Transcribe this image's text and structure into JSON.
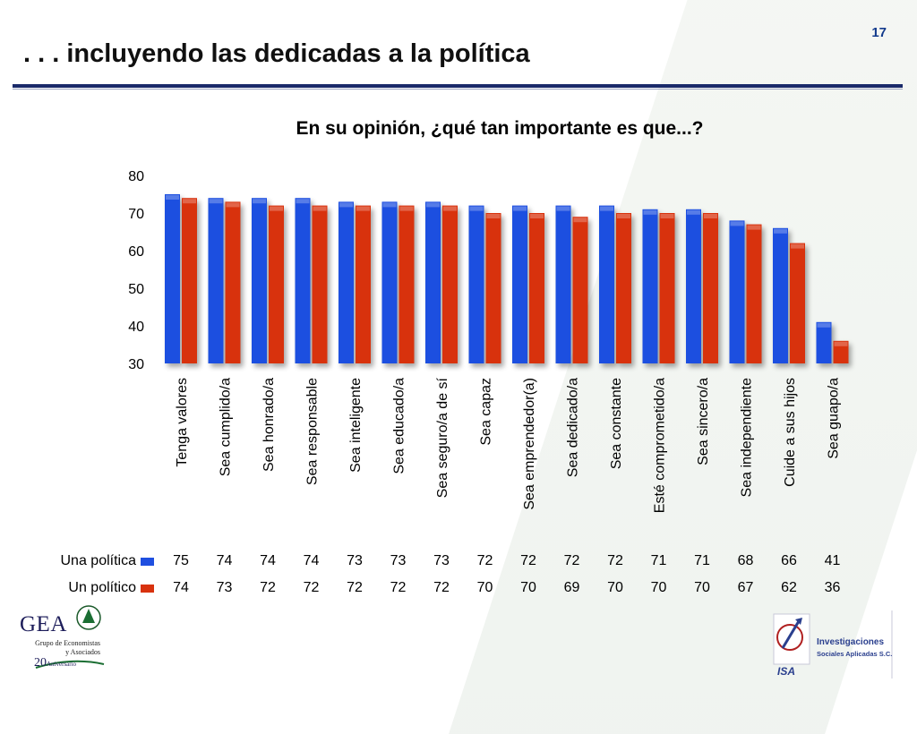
{
  "page": {
    "slide_number": "17",
    "title": ". . . incluyendo las dedicadas a la política"
  },
  "chart_data": {
    "type": "bar",
    "title": "En su opinión, ¿qué tan importante es que...?",
    "categories": [
      "Tenga valores",
      "Sea cumplido/a",
      "Sea honrado/a",
      "Sea responsable",
      "Sea inteligente",
      "Sea educado/a",
      "Sea seguro/a de sí",
      "Sea capaz",
      "Sea emprendedor(a)",
      "Sea dedicado/a",
      "Sea constante",
      "Esté comprometido/a",
      "Sea sincero/a",
      "Sea independiente",
      "Cuide a sus hijos",
      "Sea guapo/a"
    ],
    "series": [
      {
        "name": "Una política",
        "color": "#1f4fe0",
        "values": [
          75,
          74,
          74,
          74,
          73,
          73,
          73,
          72,
          72,
          72,
          72,
          71,
          71,
          68,
          66,
          41
        ]
      },
      {
        "name": "Un político",
        "color": "#d8320e",
        "values": [
          74,
          73,
          72,
          72,
          72,
          72,
          72,
          70,
          70,
          69,
          70,
          70,
          70,
          67,
          62,
          36
        ]
      }
    ],
    "ylim": [
      30,
      80
    ],
    "yticks": [
      30,
      40,
      50,
      60,
      70,
      80
    ],
    "grid": false,
    "legend": "data-table-left"
  },
  "logos": {
    "left": {
      "name": "GEA",
      "line1": "Grupo de Economistas",
      "line2": "y Asociados",
      "anniv": "20",
      "anniv_word": "Aniversario"
    },
    "right": {
      "line1": "Investigaciones",
      "line2": "Sociales Aplicadas S.C.",
      "mark": "ISA"
    }
  }
}
